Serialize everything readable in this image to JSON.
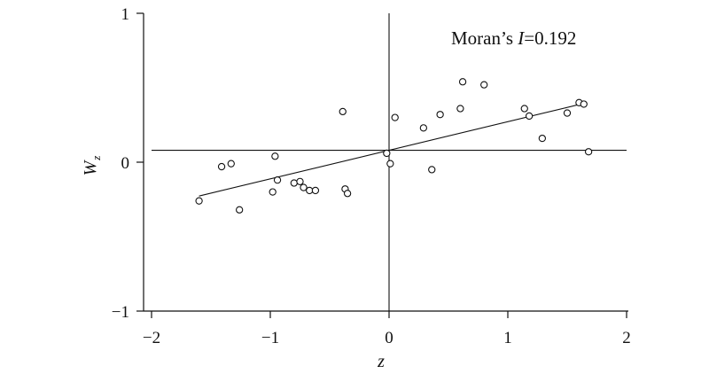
{
  "chart_data": {
    "type": "scatter",
    "title": "",
    "xlabel": "z",
    "ylabel": {
      "main": "W",
      "sub": "z"
    },
    "xlim": [
      -2,
      2
    ],
    "ylim": [
      -1,
      1
    ],
    "xticks": [
      -2,
      -1,
      0,
      1,
      2
    ],
    "yticks": [
      -1,
      0,
      1
    ],
    "xtick_labels": [
      "−2",
      "−1",
      "0",
      "1",
      "2"
    ],
    "ytick_labels": [
      "−1",
      "0",
      "1"
    ],
    "grid": false,
    "reference_lines": {
      "vertical_x": 0,
      "horizontal_y": 0.08
    },
    "annotation": {
      "prefix": "Moran’s ",
      "italic": "I",
      "suffix": "=0.192"
    },
    "fit_line": {
      "slope": 0.192,
      "intercept": 0.08,
      "x_range": [
        -1.6,
        1.65
      ]
    },
    "points": [
      {
        "x": -1.6,
        "y": -0.26
      },
      {
        "x": -1.41,
        "y": -0.03
      },
      {
        "x": -1.33,
        "y": -0.01
      },
      {
        "x": -1.26,
        "y": -0.32
      },
      {
        "x": -0.98,
        "y": -0.2
      },
      {
        "x": -0.96,
        "y": 0.04
      },
      {
        "x": -0.94,
        "y": -0.12
      },
      {
        "x": -0.8,
        "y": -0.14
      },
      {
        "x": -0.75,
        "y": -0.13
      },
      {
        "x": -0.72,
        "y": -0.17
      },
      {
        "x": -0.67,
        "y": -0.19
      },
      {
        "x": -0.62,
        "y": -0.19
      },
      {
        "x": -0.39,
        "y": 0.34
      },
      {
        "x": -0.37,
        "y": -0.18
      },
      {
        "x": -0.35,
        "y": -0.21
      },
      {
        "x": -0.02,
        "y": 0.06
      },
      {
        "x": 0.01,
        "y": -0.01
      },
      {
        "x": 0.05,
        "y": 0.3
      },
      {
        "x": 0.29,
        "y": 0.23
      },
      {
        "x": 0.36,
        "y": -0.05
      },
      {
        "x": 0.43,
        "y": 0.32
      },
      {
        "x": 0.6,
        "y": 0.36
      },
      {
        "x": 0.62,
        "y": 0.54
      },
      {
        "x": 0.8,
        "y": 0.52
      },
      {
        "x": 1.14,
        "y": 0.36
      },
      {
        "x": 1.18,
        "y": 0.31
      },
      {
        "x": 1.29,
        "y": 0.16
      },
      {
        "x": 1.5,
        "y": 0.33
      },
      {
        "x": 1.6,
        "y": 0.4
      },
      {
        "x": 1.64,
        "y": 0.39
      },
      {
        "x": 1.68,
        "y": 0.07
      }
    ]
  }
}
